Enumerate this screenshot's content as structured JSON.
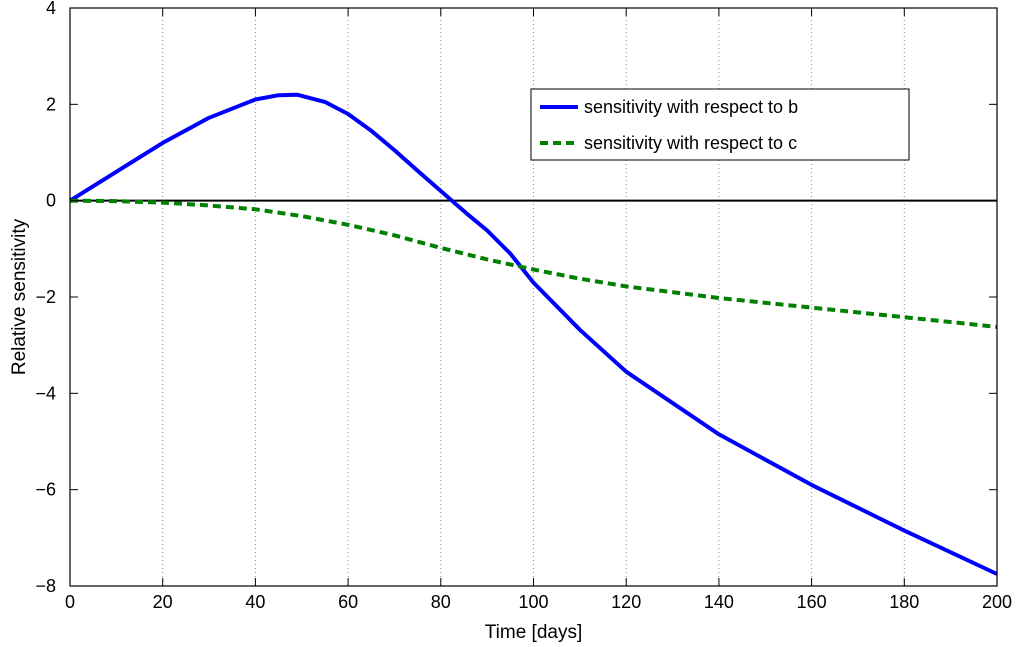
{
  "chart_data": {
    "type": "line",
    "xlabel": "Time [days]",
    "ylabel": "Relative sensitivity",
    "xlim": [
      0,
      200
    ],
    "ylim": [
      -8,
      4
    ],
    "x_ticks": [
      "0",
      "20",
      "40",
      "60",
      "80",
      "100",
      "120",
      "140",
      "160",
      "180",
      "200"
    ],
    "y_ticks": [
      "4",
      "2",
      "0",
      "−2",
      "−4",
      "−6",
      "−8"
    ],
    "x_tick_values": [
      0,
      20,
      40,
      60,
      80,
      100,
      120,
      140,
      160,
      180,
      200
    ],
    "y_tick_values": [
      4,
      2,
      0,
      -2,
      -4,
      -6,
      -8
    ],
    "grid": "vertical dotted",
    "legend_position": "top-right",
    "zero_line": true,
    "series": [
      {
        "name": "sensitivity with respect to b",
        "color": "#0000ff",
        "style": "solid",
        "x": [
          0,
          10,
          20,
          30,
          40,
          45,
          49,
          55,
          60,
          65,
          70,
          75,
          80,
          83,
          86,
          90,
          95,
          100,
          110,
          120,
          140,
          160,
          180,
          200
        ],
        "y": [
          0,
          0.6,
          1.2,
          1.72,
          2.1,
          2.19,
          2.2,
          2.05,
          1.8,
          1.45,
          1.05,
          0.62,
          0.2,
          -0.05,
          -0.3,
          -0.62,
          -1.1,
          -1.7,
          -2.68,
          -3.55,
          -4.85,
          -5.9,
          -6.85,
          -7.75
        ]
      },
      {
        "name": "sensitivity with respect to c",
        "color": "#008000",
        "style": "dashed",
        "x": [
          0,
          10,
          20,
          30,
          40,
          50,
          60,
          70,
          80,
          90,
          100,
          110,
          120,
          140,
          160,
          180,
          200
        ],
        "y": [
          0,
          -0.01,
          -0.04,
          -0.1,
          -0.18,
          -0.32,
          -0.5,
          -0.72,
          -0.98,
          -1.22,
          -1.43,
          -1.62,
          -1.78,
          -2.02,
          -2.22,
          -2.42,
          -2.62
        ]
      }
    ]
  }
}
